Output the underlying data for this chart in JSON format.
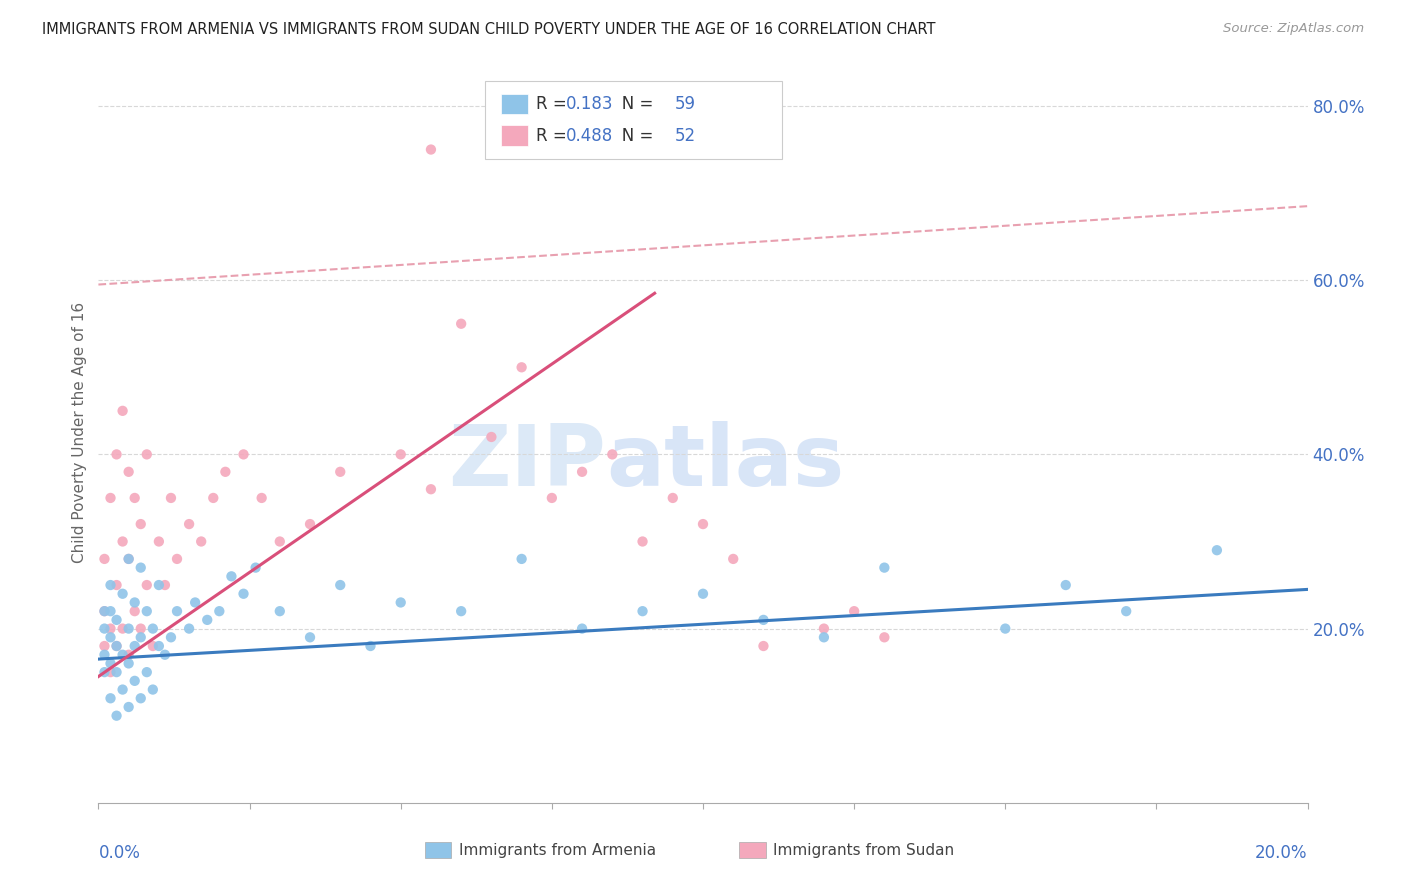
{
  "title": "IMMIGRANTS FROM ARMENIA VS IMMIGRANTS FROM SUDAN CHILD POVERTY UNDER THE AGE OF 16 CORRELATION CHART",
  "source": "Source: ZipAtlas.com",
  "ylabel": "Child Poverty Under the Age of 16",
  "xlim": [
    0.0,
    0.2
  ],
  "ylim": [
    0.0,
    0.85
  ],
  "yticks_right": [
    0.2,
    0.4,
    0.6,
    0.8
  ],
  "ytick_labels_right": [
    "20.0%",
    "40.0%",
    "60.0%",
    "80.0%"
  ],
  "armenia_R": 0.183,
  "armenia_N": 59,
  "sudan_R": 0.488,
  "sudan_N": 52,
  "armenia_color": "#8fc4e8",
  "sudan_color": "#f4a8bc",
  "armenia_trend_color": "#3a7bbf",
  "sudan_trend_color": "#d94f7a",
  "ref_line_color": "#e8a0b0",
  "background_color": "#ffffff",
  "grid_color": "#d8d8d8",
  "title_color": "#222222",
  "axis_label_color": "#4472c4",
  "legend_text_color": "#333333",
  "watermark_zip": "ZIP",
  "watermark_atlas": "atlas",
  "watermark_color": "#dce9f7",
  "armenia_x": [
    0.001,
    0.001,
    0.001,
    0.001,
    0.002,
    0.002,
    0.002,
    0.002,
    0.002,
    0.003,
    0.003,
    0.003,
    0.003,
    0.004,
    0.004,
    0.004,
    0.005,
    0.005,
    0.005,
    0.005,
    0.006,
    0.006,
    0.006,
    0.007,
    0.007,
    0.007,
    0.008,
    0.008,
    0.009,
    0.009,
    0.01,
    0.01,
    0.011,
    0.012,
    0.013,
    0.015,
    0.016,
    0.018,
    0.02,
    0.022,
    0.024,
    0.026,
    0.03,
    0.035,
    0.04,
    0.045,
    0.05,
    0.06,
    0.07,
    0.08,
    0.09,
    0.1,
    0.11,
    0.12,
    0.13,
    0.15,
    0.16,
    0.17,
    0.185
  ],
  "armenia_y": [
    0.15,
    0.17,
    0.2,
    0.22,
    0.12,
    0.16,
    0.19,
    0.22,
    0.25,
    0.1,
    0.15,
    0.18,
    0.21,
    0.13,
    0.17,
    0.24,
    0.11,
    0.16,
    0.2,
    0.28,
    0.14,
    0.18,
    0.23,
    0.12,
    0.19,
    0.27,
    0.15,
    0.22,
    0.13,
    0.2,
    0.18,
    0.25,
    0.17,
    0.19,
    0.22,
    0.2,
    0.23,
    0.21,
    0.22,
    0.26,
    0.24,
    0.27,
    0.22,
    0.19,
    0.25,
    0.18,
    0.23,
    0.22,
    0.28,
    0.2,
    0.22,
    0.24,
    0.21,
    0.19,
    0.27,
    0.2,
    0.25,
    0.22,
    0.29
  ],
  "sudan_x": [
    0.001,
    0.001,
    0.001,
    0.002,
    0.002,
    0.002,
    0.003,
    0.003,
    0.003,
    0.004,
    0.004,
    0.004,
    0.005,
    0.005,
    0.005,
    0.006,
    0.006,
    0.007,
    0.007,
    0.008,
    0.008,
    0.009,
    0.01,
    0.011,
    0.012,
    0.013,
    0.015,
    0.017,
    0.019,
    0.021,
    0.024,
    0.027,
    0.03,
    0.035,
    0.04,
    0.05,
    0.055,
    0.055,
    0.06,
    0.065,
    0.07,
    0.075,
    0.08,
    0.085,
    0.09,
    0.095,
    0.1,
    0.105,
    0.11,
    0.12,
    0.125,
    0.13
  ],
  "sudan_y": [
    0.18,
    0.22,
    0.28,
    0.15,
    0.2,
    0.35,
    0.18,
    0.25,
    0.4,
    0.2,
    0.3,
    0.45,
    0.17,
    0.28,
    0.38,
    0.22,
    0.35,
    0.2,
    0.32,
    0.25,
    0.4,
    0.18,
    0.3,
    0.25,
    0.35,
    0.28,
    0.32,
    0.3,
    0.35,
    0.38,
    0.4,
    0.35,
    0.3,
    0.32,
    0.38,
    0.4,
    0.36,
    0.75,
    0.55,
    0.42,
    0.5,
    0.35,
    0.38,
    0.4,
    0.3,
    0.35,
    0.32,
    0.28,
    0.18,
    0.2,
    0.22,
    0.19
  ],
  "armenia_trend": [
    0.0,
    0.2,
    0.165,
    0.245
  ],
  "sudan_trend": [
    0.0,
    0.092,
    0.145,
    0.585
  ],
  "ref_dashed": [
    0.0,
    0.2,
    0.595,
    0.685
  ]
}
